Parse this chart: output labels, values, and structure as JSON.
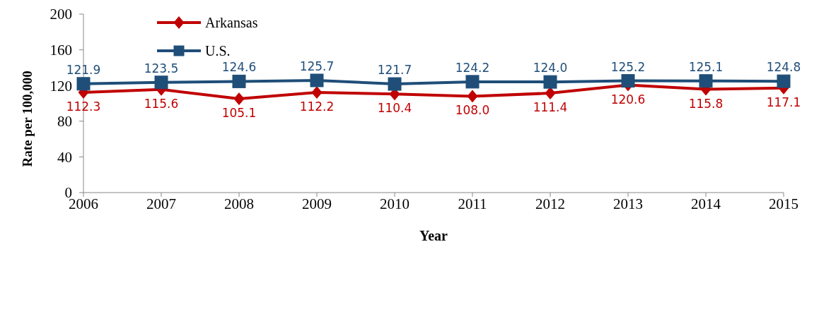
{
  "chart_data": {
    "type": "line",
    "xlabel": "Year",
    "ylabel": "Rate per 100,000",
    "categories": [
      "2006",
      "2007",
      "2008",
      "2009",
      "2010",
      "2011",
      "2012",
      "2013",
      "2014",
      "2015"
    ],
    "series": [
      {
        "name": "Arkansas",
        "color": "#c00000",
        "marker": "diamond",
        "values": [
          112.3,
          115.6,
          105.1,
          112.2,
          110.4,
          108.0,
          111.4,
          120.6,
          115.8,
          117.1
        ],
        "value_labels": [
          "112.3",
          "115.6",
          "105.1",
          "112.2",
          "110.4",
          "108.0",
          "111.4",
          "120.6",
          "115.8",
          "117.1"
        ]
      },
      {
        "name": "U.S.",
        "color": "#1f4e79",
        "marker": "square",
        "values": [
          121.9,
          123.5,
          124.6,
          125.7,
          121.7,
          124.2,
          124.0,
          125.2,
          125.1,
          124.8
        ],
        "value_labels": [
          "121.9",
          "123.5",
          "124.6",
          "125.7",
          "121.7",
          "124.2",
          "124.0",
          "125.2",
          "125.1",
          "124.8"
        ]
      }
    ],
    "ylim": [
      0,
      200
    ],
    "yticks": [
      0,
      40,
      80,
      120,
      160,
      200
    ],
    "legend": "top left"
  }
}
